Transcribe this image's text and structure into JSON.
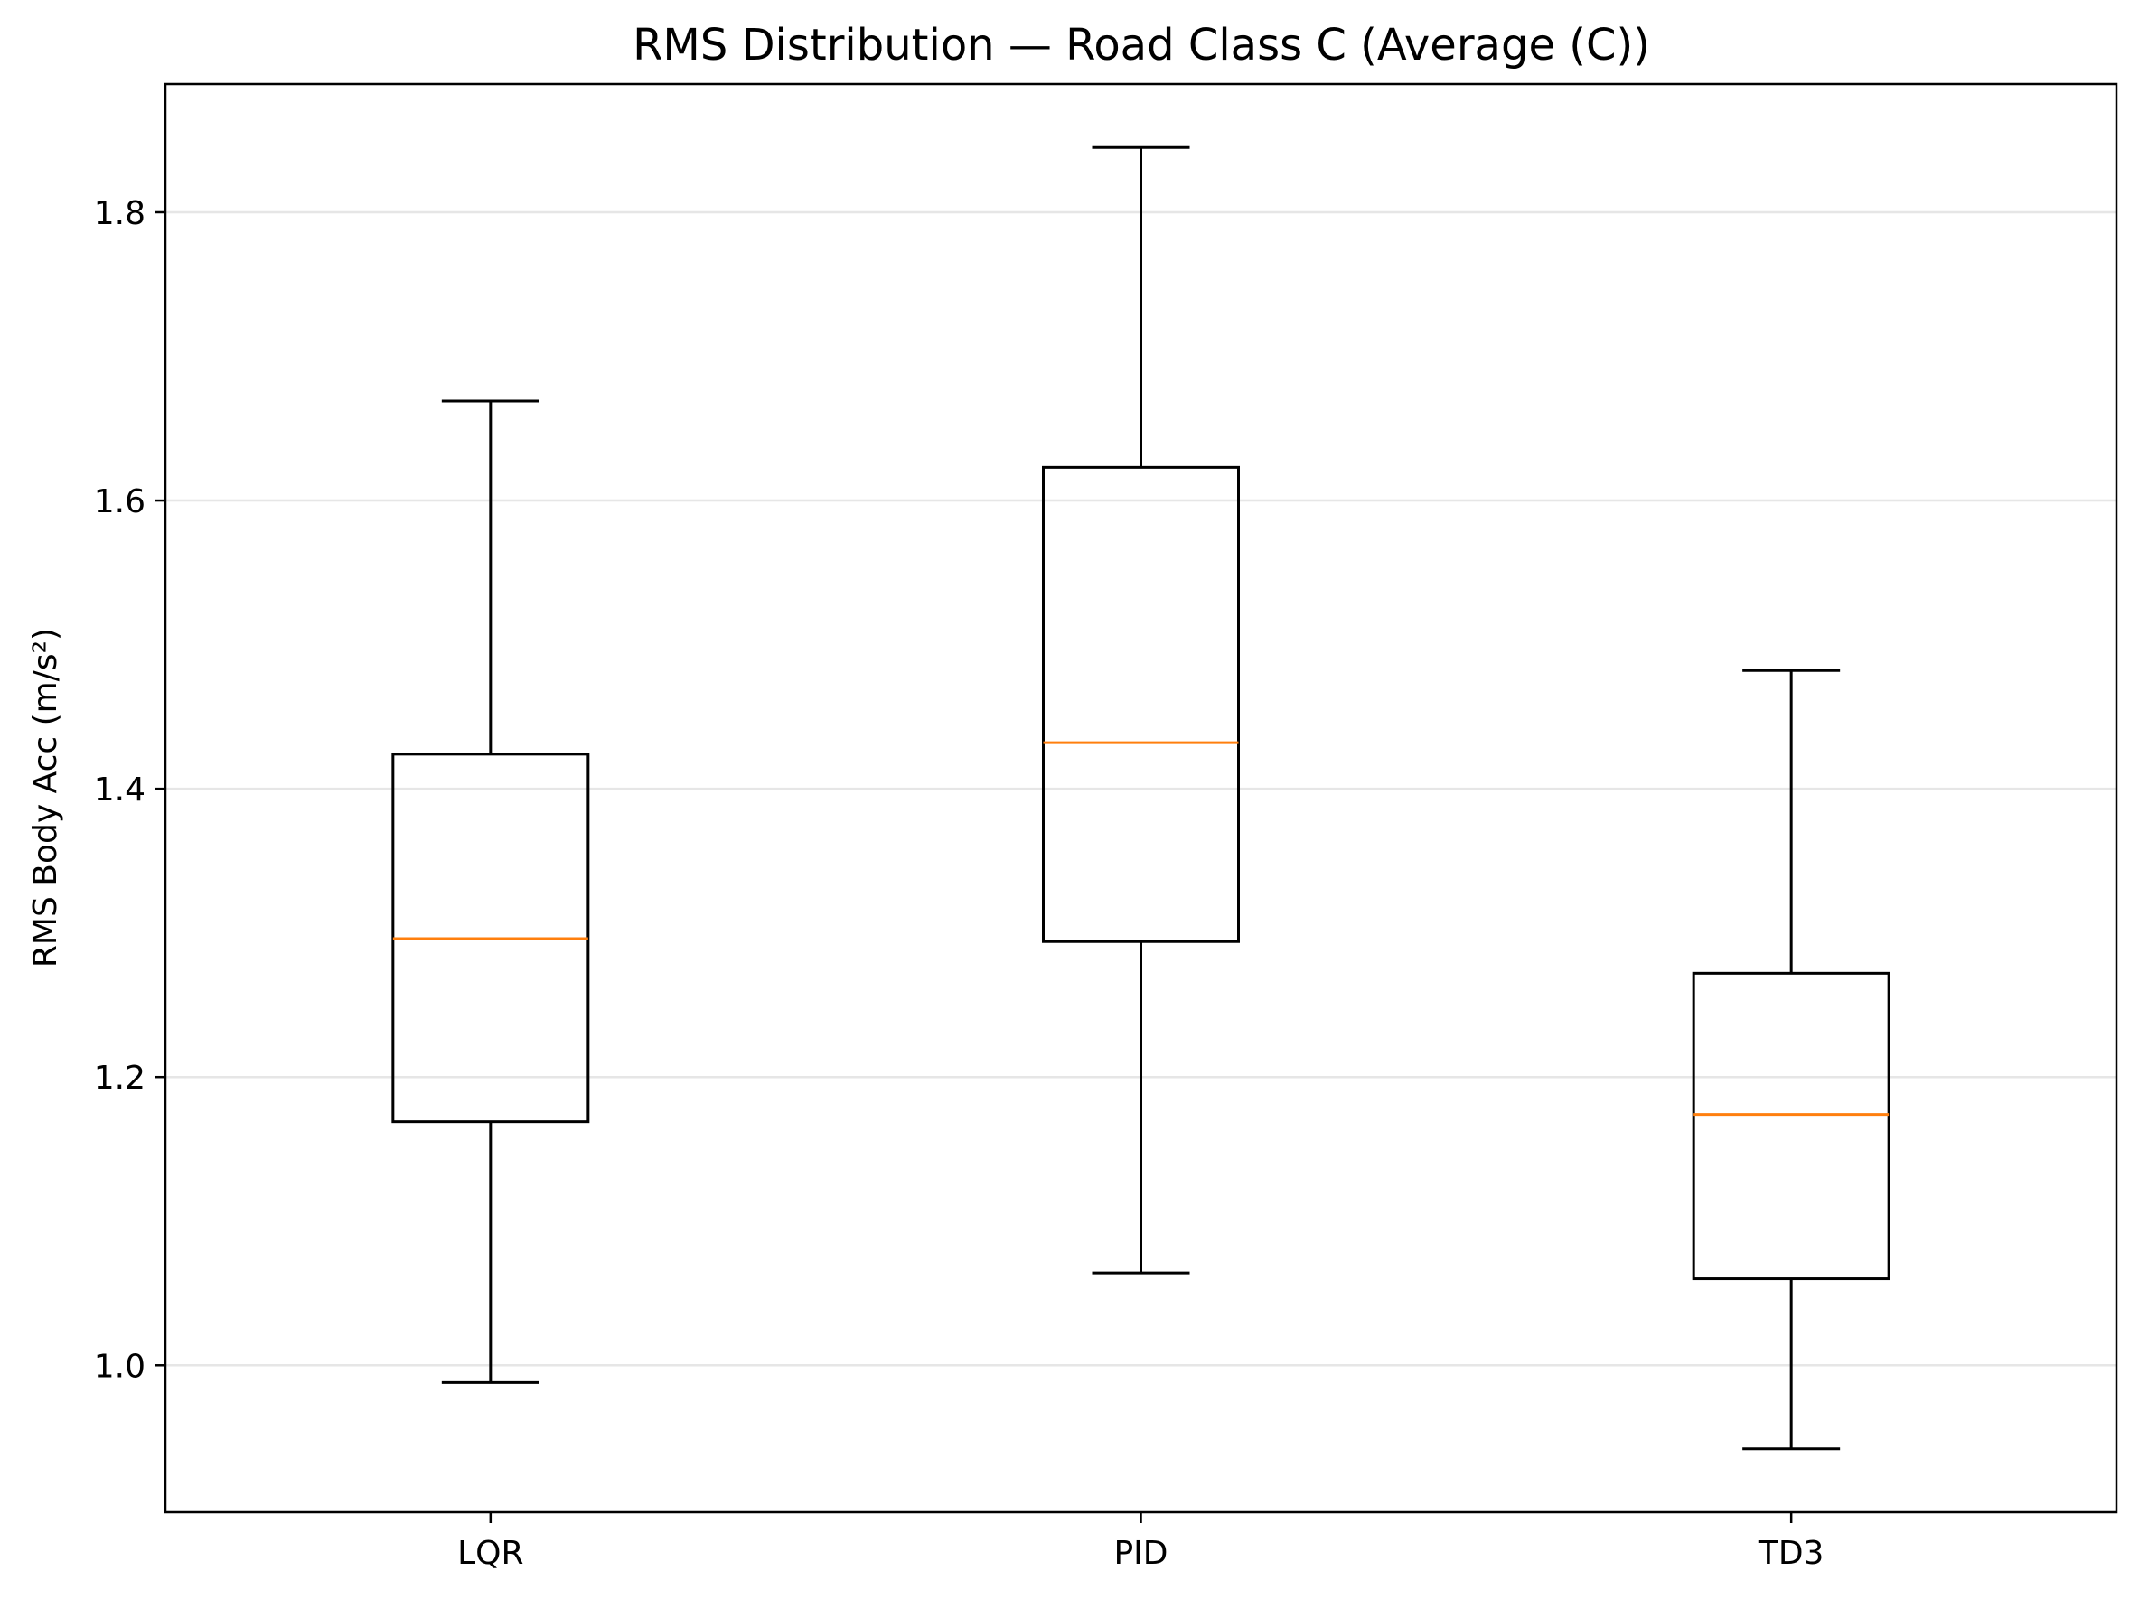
{
  "chart_data": {
    "type": "boxplot",
    "title": "RMS Distribution — Road Class C (Average (C))",
    "xlabel": "",
    "ylabel": "RMS Body Acc (m/s²)",
    "ylim": [
      0.898,
      1.889
    ],
    "yticks": [
      "1.0",
      "1.2",
      "1.4",
      "1.6",
      "1.8"
    ],
    "ytick_values": [
      1.0,
      1.2,
      1.4,
      1.6,
      1.8
    ],
    "grid": "y",
    "categories": [
      "LQR",
      "PID",
      "TD3"
    ],
    "boxes": [
      {
        "label": "LQR",
        "whisker_low": 0.988,
        "q1": 1.169,
        "median": 1.296,
        "q3": 1.424,
        "whisker_high": 1.669
      },
      {
        "label": "PID",
        "whisker_low": 1.064,
        "q1": 1.294,
        "median": 1.432,
        "q3": 1.623,
        "whisker_high": 1.845
      },
      {
        "label": "TD3",
        "whisker_low": 0.942,
        "q1": 1.06,
        "median": 1.174,
        "q3": 1.272,
        "whisker_high": 1.482
      }
    ],
    "colors": {
      "box": "#000000",
      "median": "#ff7f0e",
      "grid": "#e6e6e6"
    }
  }
}
